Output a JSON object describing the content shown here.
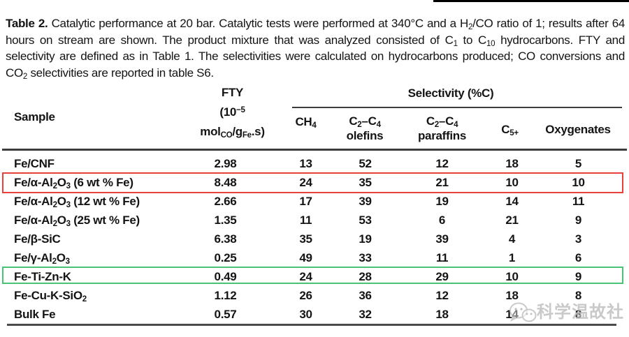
{
  "caption": {
    "label": "Table 2.",
    "body": " Catalytic performance at 20 bar. Catalytic tests were performed at 340°C and a H~2~/CO ratio of 1; results after 64 hours on stream are shown. The product mixture that was analyzed consisted of C~1~ to C~10~ hydrocarbons. FTY and selectivity are defined as in Table 1. The selectivities were calculated on hydrocarbons produced; CO conversions and CO~2~ selectivities are reported in table S6."
  },
  "table": {
    "headers": {
      "sample": "Sample",
      "fty": "FTY|(10^−5^|mol~CO~/g~Fe~.s)",
      "selectivity_group": "Selectivity (%C)",
      "ch4": "CH~4~",
      "olefins": "C~2~–C~4~|olefins",
      "paraffins": "C~2~–C~4~|paraffins",
      "c5plus": "C~5+~",
      "oxygenates": "Oxygenates"
    },
    "rows": [
      {
        "sample": "Fe/CNF",
        "values": [
          "2.98",
          "13",
          "52",
          "12",
          "18",
          "5"
        ],
        "highlight": "none"
      },
      {
        "sample": "Fe/α-Al~2~O~3~ (6 wt % Fe)",
        "values": [
          "8.48",
          "24",
          "35",
          "21",
          "10",
          "10"
        ],
        "highlight": "red"
      },
      {
        "sample": "Fe/α-Al~2~O~3~ (12 wt % Fe)",
        "values": [
          "2.66",
          "17",
          "39",
          "19",
          "14",
          "11"
        ],
        "highlight": "none"
      },
      {
        "sample": "Fe/α-Al~2~O~3~ (25 wt % Fe)",
        "values": [
          "1.35",
          "11",
          "53",
          "6",
          "21",
          "9"
        ],
        "highlight": "none"
      },
      {
        "sample": "Fe/β-SiC",
        "values": [
          "6.38",
          "35",
          "19",
          "39",
          "4",
          "3"
        ],
        "highlight": "none"
      },
      {
        "sample": "Fe/γ-Al~2~O~3~",
        "values": [
          "0.25",
          "49",
          "33",
          "11",
          "1",
          "6"
        ],
        "highlight": "none"
      },
      {
        "sample": "Fe-Ti-Zn-K",
        "values": [
          "0.49",
          "24",
          "28",
          "29",
          "10",
          "9"
        ],
        "highlight": "green"
      },
      {
        "sample": "Fe-Cu-K-SiO~2~",
        "values": [
          "1.12",
          "26",
          "36",
          "12",
          "18",
          "8"
        ],
        "highlight": "none"
      },
      {
        "sample": "Bulk Fe",
        "values": [
          "0.57",
          "30",
          "32",
          "18",
          "14",
          "8"
        ],
        "highlight": "none"
      }
    ]
  },
  "highlight_colors": {
    "red": "#e8403a",
    "green": "#4bc377"
  },
  "watermark": {
    "text": "科学温故社",
    "logo": "chat-bubbles-logo"
  }
}
